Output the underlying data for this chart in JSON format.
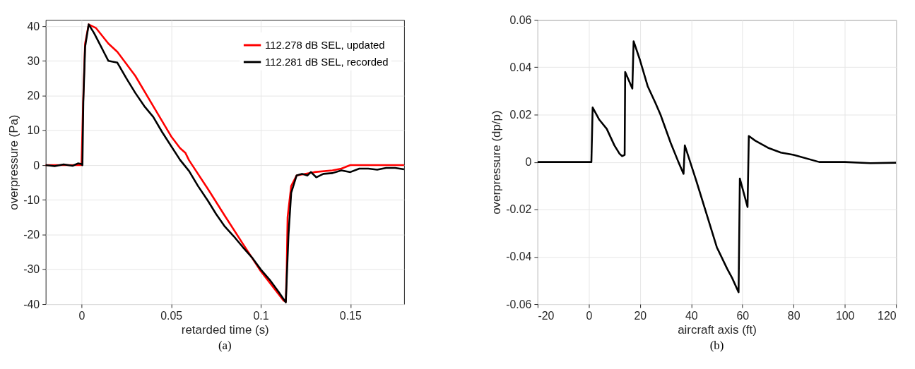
{
  "chart_data": [
    {
      "type": "line",
      "xlabel": "retarded time (s)",
      "ylabel": "overpressure (Pa)",
      "annotations": [
        "(a)"
      ],
      "xlim": [
        -0.02,
        0.18
      ],
      "xticks": [
        0,
        0.05,
        0.1,
        0.15
      ],
      "ylim": [
        -40,
        41.8
      ],
      "yticks": [
        -40,
        -30,
        -20,
        -10,
        0,
        10,
        20,
        30,
        40
      ],
      "grid": true,
      "legend": "top right",
      "line_style": "solid",
      "marker": "none",
      "series": [
        {
          "name": "112.278 dB SEL, updated",
          "color": "#ff0000",
          "x": [
            -0.02,
            0,
            0.001,
            0.002,
            0.004,
            0.008,
            0.015,
            0.02,
            0.03,
            0.04,
            0.05,
            0.055,
            0.058,
            0.06,
            0.0707,
            0.08,
            0.09,
            0.1,
            0.1128,
            0.114,
            0.1145,
            0.115,
            0.117,
            0.12,
            0.13,
            0.14,
            0.145,
            0.15,
            0.18
          ],
          "values": [
            0,
            0,
            20,
            35,
            40.5,
            39.5,
            35,
            32.6,
            25.7,
            17,
            8.3,
            4.9,
            3.5,
            1.4,
            -7,
            -14.6,
            -22.6,
            -30.5,
            -39,
            -39.3,
            -30,
            -15,
            -6,
            -3,
            -2,
            -1.5,
            -1,
            0,
            0
          ]
        },
        {
          "name": "112.281 dB SEL, recorded",
          "color": "#000000",
          "x": [
            -0.02,
            -0.015,
            -0.01,
            -0.005,
            -0.002,
            0,
            0.0005,
            0.001,
            0.002,
            0.004,
            0.007,
            0.01,
            0.013,
            0.015,
            0.02,
            0.025,
            0.03,
            0.035,
            0.04,
            0.045,
            0.05,
            0.055,
            0.06,
            0.065,
            0.0707,
            0.075,
            0.08,
            0.085,
            0.09,
            0.095,
            0.1,
            0.105,
            0.11,
            0.114,
            0.1155,
            0.117,
            0.12,
            0.123,
            0.126,
            0.128,
            0.131,
            0.135,
            0.14,
            0.145,
            0.15,
            0.155,
            0.16,
            0.165,
            0.17,
            0.175,
            0.18
          ],
          "values": [
            0,
            -0.3,
            0.2,
            -0.2,
            0.5,
            0.3,
            0,
            18,
            34,
            40.5,
            38,
            35,
            32,
            30,
            29.5,
            25,
            20.8,
            17,
            13.9,
            9.5,
            5.5,
            1.5,
            -1.7,
            -6,
            -10.4,
            -14,
            -17.7,
            -20.5,
            -23.6,
            -26.5,
            -30,
            -33,
            -36.5,
            -39.5,
            -20,
            -8,
            -3,
            -2.5,
            -3,
            -2,
            -3.5,
            -2.5,
            -2.3,
            -1.5,
            -2,
            -1,
            -1,
            -1.3,
            -0.8,
            -0.8,
            -1.2
          ]
        }
      ]
    },
    {
      "type": "line",
      "xlabel": "aircraft axis (ft)",
      "ylabel": "overpressure (dp/p)",
      "annotations": [
        "(b)"
      ],
      "xlim": [
        -20,
        120
      ],
      "xticks": [
        -20,
        0,
        20,
        40,
        60,
        80,
        100,
        120
      ],
      "ylim": [
        -0.06,
        0.06
      ],
      "yticks": [
        -0.06,
        -0.04,
        -0.02,
        0,
        0.02,
        0.04,
        0.06
      ],
      "grid": true,
      "line_style": "solid",
      "marker": "none",
      "series": [
        {
          "color": "#000000",
          "x": [
            -20,
            1,
            1.5,
            4,
            7,
            10,
            12,
            13,
            14,
            14.2,
            17,
            17.5,
            20,
            23,
            26,
            28,
            32,
            35,
            37,
            37.5,
            42,
            46,
            50,
            54,
            56,
            58.5,
            59,
            62,
            62.5,
            65,
            70,
            75,
            80,
            90,
            100,
            110,
            120
          ],
          "values": [
            0,
            0,
            0.023,
            0.018,
            0.014,
            0.007,
            0.0035,
            0.0025,
            0.003,
            0.038,
            0.031,
            0.051,
            0.043,
            0.032,
            0.025,
            0.02,
            0.008,
            0,
            -0.005,
            0.007,
            -0.008,
            -0.022,
            -0.036,
            -0.045,
            -0.049,
            -0.055,
            -0.007,
            -0.019,
            0.011,
            0.009,
            0.006,
            0.004,
            0.003,
            0,
            0,
            -0.0005,
            -0.0003
          ]
        }
      ]
    }
  ]
}
